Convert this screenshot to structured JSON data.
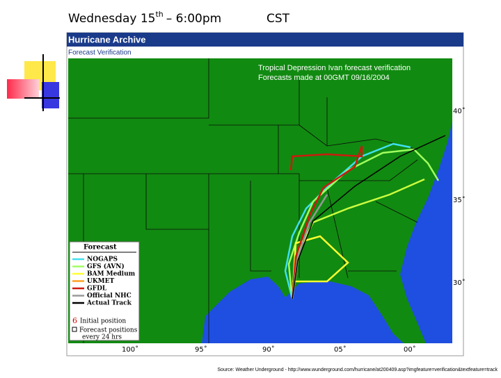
{
  "title": {
    "day": "Wednesday 15",
    "suffix": "th",
    "time": "– 6:00pm",
    "zone": "CST"
  },
  "header": {
    "title": "Hurricane Archive",
    "subtitle": "Forecast Verification"
  },
  "map": {
    "caption": [
      "Tropical Depression Ivan forecast verification",
      "Forecasts made at 00GMT 09/16/2004"
    ],
    "lat_labels": [
      "40˚",
      "35˚",
      "30˚"
    ],
    "lon_labels": [
      "100˚",
      "95˚",
      "90˚",
      "05˚",
      "00˚"
    ]
  },
  "legend": {
    "title": "Forecast",
    "items": [
      "NOGAPS",
      "GFS (AVN)",
      "BAM Medium",
      "UKMET",
      "GFDL",
      "Official NHC",
      "Actual Track"
    ],
    "initial": "Initial position",
    "positions": [
      "Forecast positions",
      "every 24 hrs"
    ]
  },
  "source": "Source: Weather Underground - http://www.wunderground.com/hurricane/at200409.asp?imgfeature=verification&textfeature=track"
}
